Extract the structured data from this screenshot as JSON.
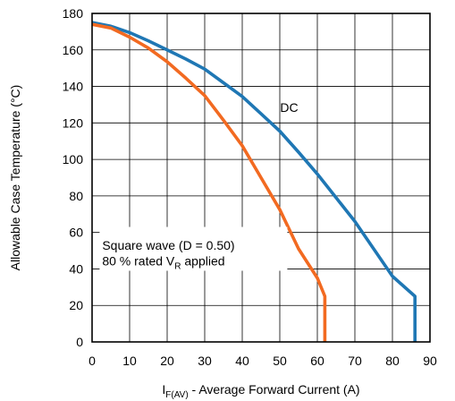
{
  "chart_data": {
    "type": "line",
    "xlabel": {
      "main": "I",
      "sub": "F(AV)",
      "rest": " - Average Forward Current (A)"
    },
    "ylabel": "Allowable Case Temperature (°C)",
    "xlim": [
      0,
      90
    ],
    "ylim": [
      0,
      180
    ],
    "xticks": [
      0,
      10,
      20,
      30,
      40,
      50,
      60,
      70,
      80,
      90
    ],
    "yticks": [
      0,
      20,
      40,
      60,
      80,
      100,
      120,
      140,
      160,
      180
    ],
    "grid": true,
    "series": [
      {
        "name": "DC",
        "color": "#1f77b4",
        "x": [
          0,
          5,
          10,
          15,
          20,
          25,
          30,
          35,
          40,
          45,
          50,
          55,
          60,
          65,
          70,
          75,
          80,
          86,
          86
        ],
        "y": [
          175,
          173,
          169.5,
          165,
          160,
          155,
          149.5,
          142,
          134.5,
          125,
          115.5,
          104,
          92,
          79,
          66,
          51,
          36,
          25,
          0
        ]
      },
      {
        "name": "Square wave (D = 0.50)",
        "color": "#f26a21",
        "x": [
          0,
          5,
          10,
          15,
          20,
          25,
          30,
          35,
          40,
          45,
          50,
          55,
          60,
          62,
          62
        ],
        "y": [
          174,
          172,
          167,
          161,
          153.5,
          144.5,
          135,
          121.5,
          107.5,
          90,
          72.5,
          51,
          35,
          25,
          0
        ]
      }
    ],
    "annotations": {
      "dc_label": "DC",
      "square_wave_line1": "Square wave (D = 0.50)",
      "square_wave_line2_prefix": "80 % rated V",
      "square_wave_line2_sub": "R",
      "square_wave_line2_suffix": " applied"
    }
  }
}
